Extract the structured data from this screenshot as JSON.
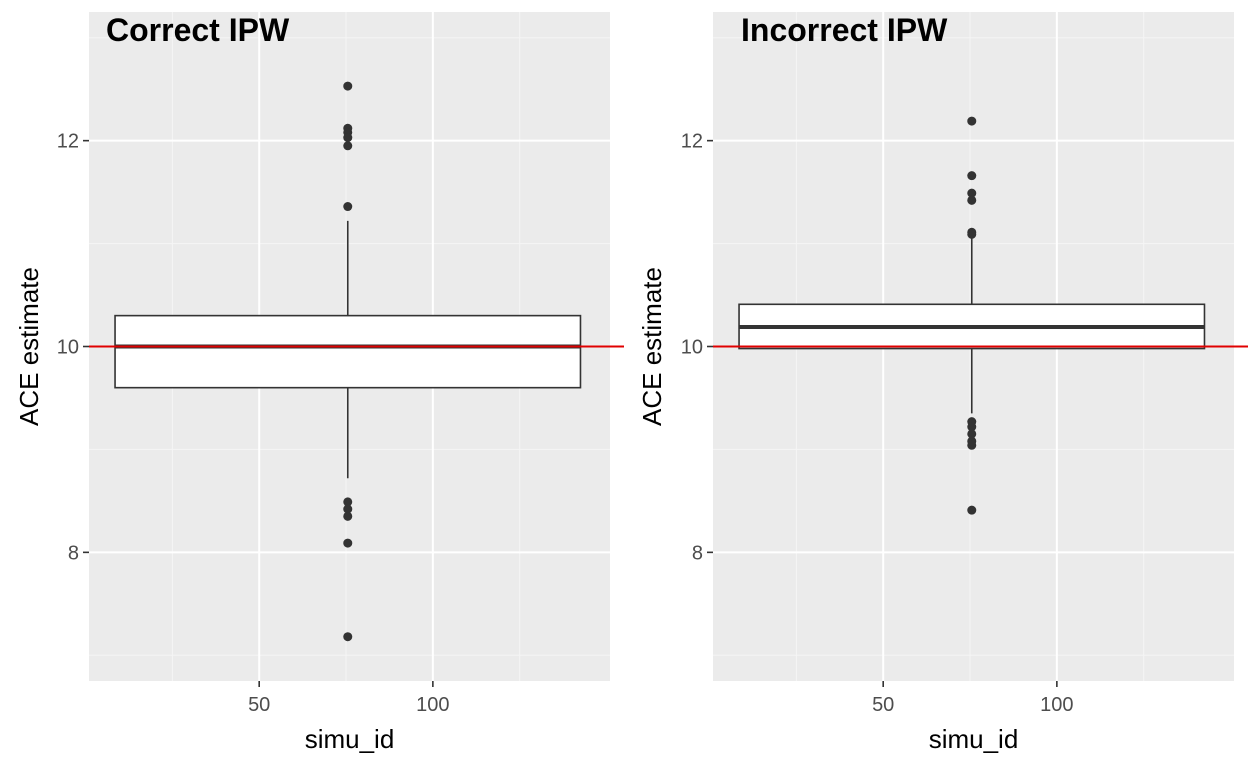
{
  "colors": {
    "panel_background": "#EBEBEB",
    "major_grid": "#FFFFFF",
    "minor_grid": "#F5F5F5",
    "box_outline": "#333333",
    "outlier_fill": "#333333",
    "reference_line": "#E00000",
    "tick_label": "#4D4D4D",
    "axis_ticks": "#333333"
  },
  "chart_data": [
    {
      "type": "boxplot",
      "title": "Correct IPW",
      "xlabel": "simu_id",
      "ylabel": "ACE estimate",
      "xlim": [
        1,
        151
      ],
      "ylim": [
        6.75,
        13.25
      ],
      "x_ticks": [
        50,
        100
      ],
      "x_tick_labels": [
        "50",
        "100"
      ],
      "y_ticks": [
        8,
        10,
        12
      ],
      "y_tick_labels": [
        "8",
        "10",
        "12"
      ],
      "grid": true,
      "reference_line": {
        "orientation": "horizontal",
        "y": 10,
        "color": "#E00000"
      },
      "box": {
        "x_center": 75.5,
        "x_range": [
          8.5,
          142.5
        ],
        "q1": 9.6,
        "median": 10.0,
        "q3": 10.3,
        "whisker_low": 8.72,
        "whisker_high": 11.22
      },
      "outliers": [
        12.53,
        12.12,
        12.08,
        12.03,
        11.95,
        11.36,
        8.49,
        8.42,
        8.35,
        8.09,
        7.18
      ]
    },
    {
      "type": "boxplot",
      "title": "Incorrect IPW",
      "xlabel": "simu_id",
      "ylabel": "ACE estimate",
      "xlim": [
        1,
        151
      ],
      "ylim": [
        6.75,
        13.25
      ],
      "x_ticks": [
        50,
        100
      ],
      "x_tick_labels": [
        "50",
        "100"
      ],
      "y_ticks": [
        8,
        10,
        12
      ],
      "y_tick_labels": [
        "8",
        "10",
        "12"
      ],
      "grid": true,
      "reference_line": {
        "orientation": "horizontal",
        "y": 10,
        "color": "#E00000"
      },
      "box": {
        "x_center": 75.5,
        "x_range": [
          8.5,
          142.5
        ],
        "q1": 9.98,
        "median": 10.19,
        "q3": 10.41,
        "whisker_low": 9.35,
        "whisker_high": 11.05
      },
      "outliers": [
        12.19,
        11.66,
        11.49,
        11.42,
        11.11,
        11.09,
        9.27,
        9.22,
        9.15,
        9.08,
        9.04,
        8.41
      ]
    }
  ]
}
